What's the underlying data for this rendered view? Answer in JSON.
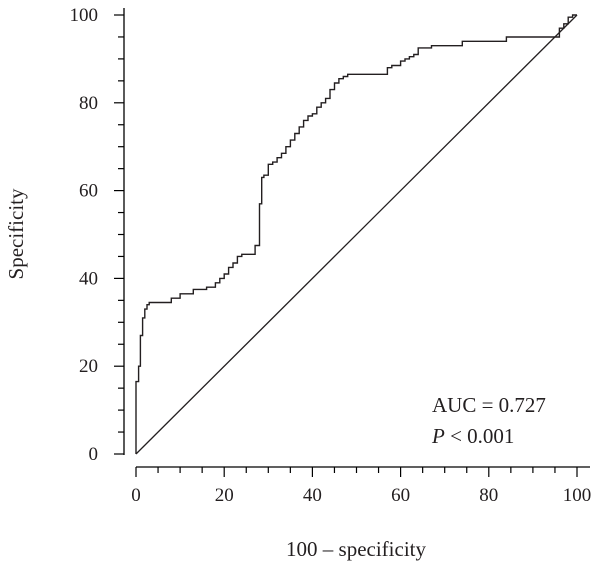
{
  "chart_data": {
    "type": "line",
    "xlabel": "100 – specificity",
    "ylabel": "Specificity",
    "xlim": [
      0,
      100
    ],
    "ylim": [
      0,
      100
    ],
    "x_ticks": [
      0,
      20,
      40,
      60,
      80,
      100
    ],
    "y_ticks": [
      0,
      20,
      40,
      60,
      80,
      100
    ],
    "x_minor_step": 5,
    "y_minor_step": 5,
    "grid": false,
    "annotations": {
      "auc": "AUC = 0.727",
      "p_italic": "P",
      "p_rest": " < 0.001"
    },
    "series": [
      {
        "kind": "step",
        "x": [
          0,
          0,
          0.6,
          0.6,
          1,
          1,
          1.5,
          1.5,
          2,
          2,
          2.5,
          2.5,
          3,
          3,
          8,
          8,
          10,
          10,
          13,
          13,
          16,
          16,
          18,
          18,
          19,
          19,
          20,
          20,
          21,
          21,
          22,
          22,
          23,
          23,
          24,
          24,
          27,
          27,
          28,
          28,
          28.5,
          28.5,
          29,
          29,
          30,
          30,
          31,
          31,
          32,
          32,
          33,
          33,
          34,
          34,
          35,
          35,
          36,
          36,
          37,
          37,
          38,
          38,
          39,
          39,
          40,
          40,
          41,
          41,
          42,
          42,
          43,
          43,
          44,
          44,
          45,
          45,
          46,
          46,
          47,
          47,
          48,
          48,
          57,
          57,
          58,
          58,
          60,
          60,
          61,
          61,
          62,
          62,
          63,
          63,
          64,
          64,
          67,
          67,
          74,
          74,
          84,
          84,
          96,
          96,
          97,
          97,
          98,
          98,
          99,
          99,
          100
        ],
        "y": [
          0,
          16.5,
          16.5,
          20,
          20,
          27,
          27,
          31,
          31,
          33,
          33,
          34,
          34,
          34.5,
          34.5,
          35.5,
          35.5,
          36.5,
          36.5,
          37.5,
          37.5,
          38,
          38,
          39,
          39,
          40,
          40,
          41,
          41,
          42.5,
          42.5,
          43.5,
          43.5,
          45,
          45,
          45.5,
          45.5,
          47.5,
          47.5,
          57,
          57,
          63,
          63,
          63.5,
          63.5,
          66,
          66,
          66.5,
          66.5,
          67.5,
          67.5,
          68.5,
          68.5,
          70,
          70,
          71.5,
          71.5,
          73,
          73,
          74.5,
          74.5,
          76,
          76,
          77,
          77,
          77.5,
          77.5,
          79,
          79,
          80,
          80,
          81,
          81,
          83,
          83,
          84.5,
          84.5,
          85.5,
          85.5,
          86,
          86,
          86.5,
          86.5,
          88,
          88,
          88.5,
          88.5,
          89.5,
          89.5,
          90,
          90,
          90.5,
          90.5,
          91,
          91,
          92.5,
          92.5,
          93,
          93,
          94,
          94,
          95,
          95,
          97,
          97,
          98,
          98,
          99.5,
          99.5,
          100,
          100
        ]
      },
      {
        "kind": "reference",
        "x": [
          0,
          100
        ],
        "y": [
          0,
          100
        ]
      }
    ]
  }
}
